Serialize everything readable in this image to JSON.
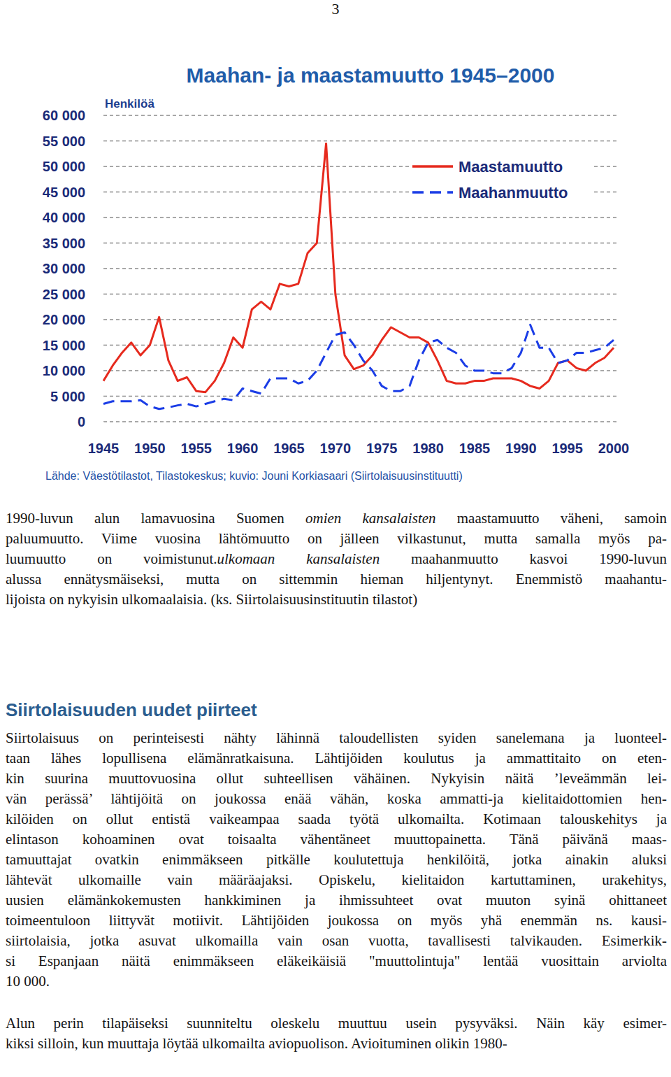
{
  "page_number": "3",
  "chart_data": {
    "type": "line",
    "title": "Maahan- ja maastamuutto 1945–2000",
    "y_label": "Henkilöä",
    "source": "Lähde: Väestötilastot, Tilastokeskus; kuvio: Jouni Korkiasaari (Siirtolaisuusinstituutti)",
    "x": [
      1945,
      1946,
      1947,
      1948,
      1949,
      1950,
      1951,
      1952,
      1953,
      1954,
      1955,
      1956,
      1957,
      1958,
      1959,
      1960,
      1961,
      1962,
      1963,
      1964,
      1965,
      1966,
      1967,
      1968,
      1969,
      1970,
      1971,
      1972,
      1973,
      1974,
      1975,
      1976,
      1977,
      1978,
      1979,
      1980,
      1981,
      1982,
      1983,
      1984,
      1985,
      1986,
      1987,
      1988,
      1989,
      1990,
      1991,
      1992,
      1993,
      1994,
      1995,
      1996,
      1997,
      1998,
      1999,
      2000
    ],
    "series": [
      {
        "name": "Maastamuutto",
        "color": "#e62a1e",
        "line_style": "solid",
        "values": [
          8000,
          11000,
          13500,
          15500,
          13000,
          15000,
          20500,
          12000,
          8000,
          8700,
          6000,
          5800,
          8000,
          11500,
          16500,
          14500,
          22000,
          23500,
          22000,
          27000,
          26500,
          27000,
          33000,
          35000,
          54500,
          25000,
          13000,
          10300,
          11000,
          13000,
          16000,
          18500,
          17500,
          16500,
          16500,
          15500,
          12000,
          8000,
          7500,
          7500,
          8000,
          8000,
          8500,
          8500,
          8500,
          8000,
          7000,
          6500,
          8000,
          11500,
          12000,
          10500,
          10000,
          11500,
          12500,
          14500
        ]
      },
      {
        "name": "Maahanmuutto",
        "color": "#1b3de6",
        "line_style": "dashed",
        "values": [
          3500,
          4000,
          4000,
          4000,
          4200,
          3000,
          2500,
          2800,
          3200,
          3500,
          3000,
          3500,
          4000,
          4500,
          4200,
          6500,
          6000,
          5500,
          8500,
          8500,
          8500,
          7500,
          8000,
          10000,
          13500,
          17000,
          17500,
          15000,
          12000,
          10000,
          7000,
          6000,
          6000,
          7000,
          12000,
          15500,
          16000,
          14500,
          13500,
          11000,
          10000,
          10000,
          9500,
          9500,
          10500,
          13500,
          19000,
          14500,
          14500,
          11500,
          12000,
          13500,
          13500,
          14000,
          14500,
          16000
        ]
      }
    ],
    "xlim": [
      1945,
      2000
    ],
    "xticks": [
      1945,
      1950,
      1955,
      1960,
      1965,
      1970,
      1975,
      1980,
      1985,
      1990,
      1995,
      2000
    ],
    "ylim": [
      0,
      60000
    ],
    "yticks": [
      0,
      {
        "value": 5000,
        "label": "5 000"
      },
      {
        "value": 10000,
        "label": "10 000"
      },
      {
        "value": 15000,
        "label": "15 000"
      },
      {
        "value": 20000,
        "label": "20 000"
      },
      {
        "value": 25000,
        "label": "25 000"
      },
      {
        "value": 30000,
        "label": "30 000"
      },
      {
        "value": 35000,
        "label": "35 000"
      },
      {
        "value": 40000,
        "label": "40 000"
      },
      {
        "value": 45000,
        "label": "45 000"
      },
      {
        "value": 50000,
        "label": "50 000"
      },
      {
        "value": 55000,
        "label": "55 000"
      },
      {
        "value": 60000,
        "label": "60 000"
      }
    ],
    "grid": true,
    "legend": "upper right"
  },
  "intro": {
    "lines": [
      [
        {
          "text": "1990-luvun alun lamavuosina Suomen "
        },
        {
          "text": "omien kansalaisten",
          "italic": true
        },
        {
          "text": " maastamuutto väheni, samoin"
        }
      ],
      "paluumuutto. Viime vuosina lähtömuutto on jälleen vilkastunut, mutta samalla myös pa-",
      [
        {
          "text": "luumuutto on voimistunut."
        },
        {
          "text": "ulkomaan kansalaisten",
          "italic": true
        },
        {
          "text": " maahanmuutto kasvoi 1990-luvun"
        }
      ],
      "alussa ennätysmäiseksi, mutta on sittemmin hieman hiljentynyt. Enemmistö maahantu-",
      "lijoista on nykyisin ulkomaalaisia. (ks. Siirtolaisuusinstituutin tilastot)"
    ]
  },
  "section": {
    "heading": "Siirtolaisuuden uudet piirteet",
    "paragraphs": [
      {
        "lines": [
          "Siirtolaisuus on perinteisesti nähty lähinnä taloudellisten syiden sanelemana ja luonteel-",
          "taan lähes lopullisena elämänratkaisuna. Lähtijöiden koulutus ja ammattitaito on eten-",
          "kin suurina muuttovuosina ollut suhteellisen vähäinen. Nykyisin näitä ’leveämmän lei-",
          "vän perässä’ lähtijöitä on joukossa enää vähän, koska ammatti-ja kielitaidottomien hen-",
          "kilöiden on ollut entistä vaikeampaa saada työtä ulkomailta. Kotimaan talouskehitys ja",
          "elintason kohoaminen ovat toisaalta vähentäneet muuttopainetta. Tänä päivänä maas-",
          "tamuuttajat ovatkin enimmäkseen pitkälle koulutettuja henkilöitä, jotka ainakin aluksi",
          "lähtevät ulkomaille vain määräajaksi. Opiskelu, kielitaidon kartuttaminen, urakehitys,",
          "uusien elämänkokemusten hankkiminen ja ihmissuhteet ovat muuton syinä ohittaneet",
          "toimeentuloon liittyvät motiivit. Lähtijöiden joukossa on myös yhä enemmän ns. kausi-",
          "siirtolaisia, jotka asuvat ulkomailla vain osan vuotta, tavallisesti talvikauden. Esimerkik-",
          "si Espanjaan näitä enimmäkseen eläkeikäisiä \"muuttolintuja\" lentää vuosittain arviolta",
          "10 000."
        ]
      },
      {
        "lines": [
          "Alun perin tilapäiseksi suunniteltu oleskelu muuttuu usein pysyväksi. Näin käy esimer-",
          "kiksi silloin, kun muuttaja löytää ulkomailta aviopuolison. Avioituminen olikin 1980-"
        ]
      }
    ]
  }
}
